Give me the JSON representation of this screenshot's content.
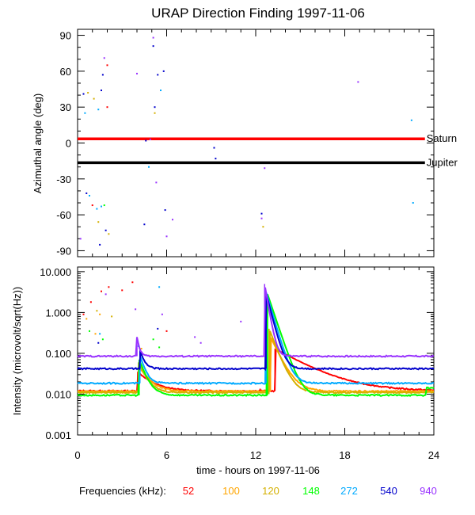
{
  "title": "URAP Direction Finding  1997-11-06",
  "chart_data": [
    {
      "type": "scatter",
      "name": "azimuth",
      "ylabel": "Azimuthal angle (deg)",
      "ylim": [
        -95,
        95
      ],
      "yticks": [
        90,
        60,
        30,
        0,
        -30,
        -60,
        -90
      ],
      "ytick_labels": [
        "90",
        "60",
        "30",
        "0",
        "-30",
        "-60",
        "-90"
      ],
      "xlim": [
        0,
        24
      ],
      "reference_lines": [
        {
          "label": "Saturn",
          "y": 3.5,
          "color": "#ff0000"
        },
        {
          "label": "Jupiter",
          "y": -16.5,
          "color": "#000000"
        }
      ],
      "points": [
        {
          "x": 0.2,
          "y": -80,
          "c": 6
        },
        {
          "x": 0.4,
          "y": 41,
          "c": 5
        },
        {
          "x": 0.5,
          "y": 25,
          "c": 4
        },
        {
          "x": 0.6,
          "y": -42,
          "c": 5
        },
        {
          "x": 0.8,
          "y": -44,
          "c": 4
        },
        {
          "x": 0.7,
          "y": 42,
          "c": 2
        },
        {
          "x": 1.0,
          "y": -52,
          "c": 0
        },
        {
          "x": 1.1,
          "y": 37,
          "c": 2
        },
        {
          "x": 1.3,
          "y": -55,
          "c": 4
        },
        {
          "x": 1.4,
          "y": 28,
          "c": 4
        },
        {
          "x": 1.4,
          "y": -66,
          "c": 2
        },
        {
          "x": 1.5,
          "y": -85,
          "c": 5
        },
        {
          "x": 1.6,
          "y": -53,
          "c": 4
        },
        {
          "x": 1.6,
          "y": 44,
          "c": 5
        },
        {
          "x": 1.7,
          "y": 57,
          "c": 5
        },
        {
          "x": 1.8,
          "y": 71,
          "c": 6
        },
        {
          "x": 1.8,
          "y": -52,
          "c": 3
        },
        {
          "x": 1.9,
          "y": -73,
          "c": 5
        },
        {
          "x": 2.0,
          "y": 65,
          "c": 0
        },
        {
          "x": 2.0,
          "y": 30,
          "c": 0
        },
        {
          "x": 2.1,
          "y": -76,
          "c": 2
        },
        {
          "x": 4.0,
          "y": 58,
          "c": 6
        },
        {
          "x": 4.5,
          "y": -68,
          "c": 5
        },
        {
          "x": 4.6,
          "y": 2,
          "c": 5
        },
        {
          "x": 4.8,
          "y": -20,
          "c": 4
        },
        {
          "x": 4.9,
          "y": 3,
          "c": 6
        },
        {
          "x": 5.1,
          "y": 88,
          "c": 6
        },
        {
          "x": 5.1,
          "y": 81,
          "c": 5
        },
        {
          "x": 5.2,
          "y": 30,
          "c": 5
        },
        {
          "x": 5.2,
          "y": 25,
          "c": 2
        },
        {
          "x": 5.3,
          "y": -33,
          "c": 6
        },
        {
          "x": 5.4,
          "y": 57,
          "c": 5
        },
        {
          "x": 5.6,
          "y": 44,
          "c": 4
        },
        {
          "x": 5.8,
          "y": 60,
          "c": 5
        },
        {
          "x": 5.9,
          "y": -56,
          "c": 5
        },
        {
          "x": 6.0,
          "y": -78,
          "c": 6
        },
        {
          "x": 6.4,
          "y": -64,
          "c": 6
        },
        {
          "x": 9.2,
          "y": -4,
          "c": 5
        },
        {
          "x": 9.3,
          "y": -13,
          "c": 5
        },
        {
          "x": 12.4,
          "y": -59,
          "c": 5
        },
        {
          "x": 12.4,
          "y": -63,
          "c": 6
        },
        {
          "x": 12.5,
          "y": -70,
          "c": 2
        },
        {
          "x": 12.6,
          "y": -21,
          "c": 6
        },
        {
          "x": 18.9,
          "y": 51,
          "c": 6
        },
        {
          "x": 22.5,
          "y": 19,
          "c": 4
        },
        {
          "x": 22.6,
          "y": -50,
          "c": 4
        }
      ]
    },
    {
      "type": "scatter",
      "name": "intensity",
      "ylabel": "Intensity (microvolt/sqrt(Hz))",
      "yscale": "log",
      "ylim": [
        0.001,
        13
      ],
      "yticks": [
        10,
        1,
        0.1,
        0.01,
        0.001
      ],
      "ytick_labels": [
        "10.000",
        "1.000",
        "0.100",
        "0.010",
        "0.001"
      ],
      "xlabel": "time - hours on 1997-11-06",
      "xlim": [
        0,
        24
      ],
      "xticks": [
        0,
        6,
        12,
        18,
        24
      ],
      "xtick_labels": [
        "0",
        "6",
        "12",
        "18",
        "24"
      ],
      "series": [
        {
          "name": "52",
          "color": "#ff0000",
          "baseline": 0.012,
          "event1": {
            "t0": 4.05,
            "peak": 0.035,
            "decay": 0.9
          },
          "event2": {
            "t0": 13.3,
            "peak": 0.13,
            "decay": 2.0
          },
          "points": [
            [
              0.4,
              0.9
            ],
            [
              0.9,
              1.8
            ],
            [
              1.6,
              3.3
            ],
            [
              2.1,
              4.2
            ],
            [
              3.0,
              3.5
            ],
            [
              3.7,
              5.5
            ],
            [
              6.0,
              0.35
            ],
            [
              12.3,
              0.013
            ]
          ]
        },
        {
          "name": "100",
          "color": "#ffa500",
          "baseline": 0.0118,
          "event1": {
            "t0": 4.1,
            "peak": 0.05,
            "decay": 0.6
          },
          "event2": {
            "t0": 13.0,
            "peak": 0.25,
            "decay": 0.55
          },
          "points": [
            [
              0.6,
              0.7
            ],
            [
              1.2,
              0.3
            ],
            [
              1.5,
              0.9
            ],
            [
              4.3,
              0.13
            ]
          ]
        },
        {
          "name": "120",
          "color": "#d4b000",
          "baseline": 0.011,
          "event1": {
            "t0": 4.1,
            "peak": 0.06,
            "decay": 0.45
          },
          "event2": {
            "t0": 12.9,
            "peak": 0.4,
            "decay": 0.45
          },
          "points": [
            [
              1.3,
              1.1
            ],
            [
              2.3,
              0.8
            ]
          ]
        },
        {
          "name": "148",
          "color": "#00ff00",
          "baseline": 0.0094,
          "event1": {
            "t0": 4.15,
            "peak": 0.07,
            "decay": 0.4
          },
          "event2": {
            "t0": 12.8,
            "peak": 2.8,
            "decay": 0.4
          },
          "points": [
            [
              0.8,
              0.35
            ],
            [
              1.7,
              0.22
            ],
            [
              5.1,
              0.22
            ],
            [
              5.5,
              0.14
            ]
          ]
        },
        {
          "name": "272",
          "color": "#00aaff",
          "baseline": 0.0185,
          "event1": {
            "t0": 4.2,
            "peak": 0.09,
            "decay": 0.3
          },
          "event2": {
            "t0": 12.7,
            "peak": 3.2,
            "decay": 0.35
          },
          "points": [
            [
              1.5,
              0.3
            ],
            [
              5.5,
              4.2
            ],
            [
              4.1,
              0.15
            ]
          ]
        },
        {
          "name": "540",
          "color": "#0000cc",
          "baseline": 0.042,
          "event1": {
            "t0": 4.2,
            "peak": 0.12,
            "decay": 0.25
          },
          "event2": {
            "t0": 12.7,
            "peak": 3.0,
            "decay": 0.3
          },
          "points": [
            [
              5.4,
              0.4
            ],
            [
              1.4,
              0.18
            ]
          ]
        },
        {
          "name": "940",
          "color": "#9933ff",
          "baseline": 0.085,
          "event1": {
            "t0": 4.0,
            "peak": 0.25,
            "decay": 0.15
          },
          "event2": {
            "t0": 12.6,
            "peak": 5.0,
            "decay": 0.2
          },
          "points": [
            [
              1.9,
              2.8
            ],
            [
              3.9,
              1.2
            ],
            [
              5.7,
              0.9
            ],
            [
              7.9,
              0.25
            ],
            [
              11.0,
              0.6
            ],
            [
              8.3,
              0.18
            ]
          ]
        }
      ]
    }
  ],
  "legend": {
    "title": "Frequencies (kHz):",
    "entries": [
      {
        "label": "52",
        "color": "#ff0000"
      },
      {
        "label": "100",
        "color": "#ffa500"
      },
      {
        "label": "120",
        "color": "#d4b000"
      },
      {
        "label": "148",
        "color": "#00ff00"
      },
      {
        "label": "272",
        "color": "#00aaff"
      },
      {
        "label": "540",
        "color": "#0000cc"
      },
      {
        "label": "940",
        "color": "#9933ff"
      }
    ]
  },
  "point_colors": [
    "#ff0000",
    "#ffa500",
    "#d4b000",
    "#00ff00",
    "#00aaff",
    "#0000cc",
    "#9933ff"
  ]
}
